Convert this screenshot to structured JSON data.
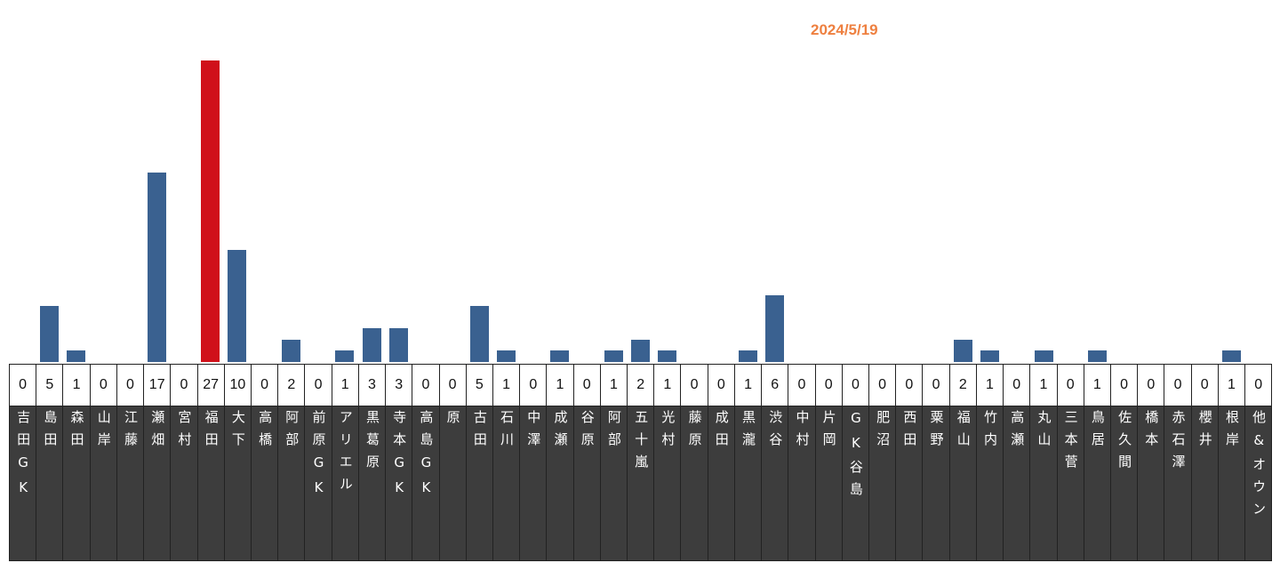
{
  "chart_data": {
    "type": "bar",
    "title": "2024/5/19",
    "categories": [
      "吉田GK",
      "島田",
      "森田",
      "山岸",
      "江藤",
      "瀬畑",
      "宮村",
      "福田",
      "大下",
      "高橋",
      "阿部",
      "前原GK",
      "アリエル",
      "黒葛原",
      "寺本GK",
      "高島GK",
      "原",
      "古田",
      "石川",
      "中澤",
      "成瀬",
      "谷原",
      "阿部",
      "五十嵐",
      "光村",
      "藤原",
      "成田",
      "黒瀧",
      "渋谷",
      "中村",
      "片岡",
      "GK谷島",
      "肥沼",
      "西田",
      "粟野",
      "福山",
      "竹内",
      "高瀬",
      "丸山",
      "三本菅",
      "鳥居",
      "佐久間",
      "橋本",
      "赤石澤",
      "櫻井",
      "根岸",
      "他&オウン"
    ],
    "values": [
      0,
      5,
      1,
      0,
      0,
      17,
      0,
      27,
      10,
      0,
      2,
      0,
      1,
      3,
      3,
      0,
      0,
      5,
      1,
      0,
      1,
      0,
      1,
      2,
      1,
      0,
      0,
      1,
      6,
      0,
      0,
      0,
      0,
      0,
      0,
      2,
      1,
      0,
      1,
      0,
      1,
      0,
      0,
      0,
      0,
      1,
      0
    ],
    "ylim": [
      0,
      27
    ],
    "xlabel": "",
    "ylabel": "",
    "grid": false,
    "colors": {
      "bar": "#3a6190",
      "highlight": "#d0101a",
      "title": "#ee8040"
    },
    "highlight_index": 7
  }
}
